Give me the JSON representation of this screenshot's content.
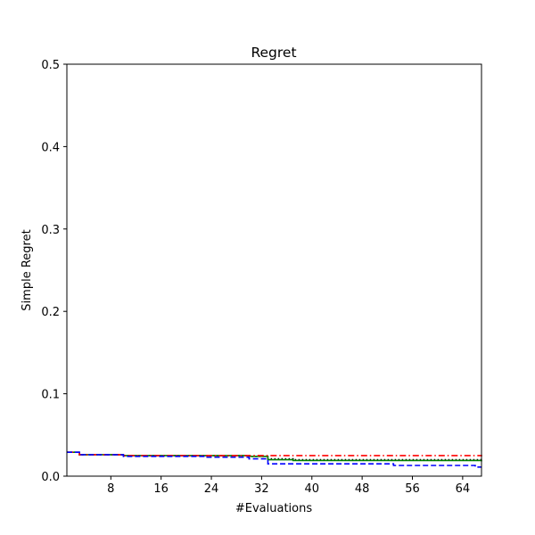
{
  "chart_data": {
    "type": "line",
    "title": "Regret",
    "xlabel": "#Evaluations",
    "ylabel": "Simple Regret",
    "xlim": [
      1,
      67
    ],
    "ylim": [
      0,
      0.5
    ],
    "xticks": [
      8,
      16,
      24,
      32,
      40,
      48,
      56,
      64
    ],
    "xtick_labels": [
      "8",
      "16",
      "24",
      "32",
      "40",
      "48",
      "56",
      "64"
    ],
    "yticks": [
      0.0,
      0.1,
      0.2,
      0.3,
      0.4,
      0.5
    ],
    "ytick_labels": [
      "0.0",
      "0.1",
      "0.2",
      "0.3",
      "0.4",
      "0.5"
    ],
    "grid": false,
    "series": [
      {
        "color": "#000000",
        "style": "dotted",
        "x": [
          1,
          2,
          3,
          10,
          30,
          33,
          37,
          67
        ],
        "y": [
          0.029,
          0.029,
          0.026,
          0.025,
          0.024,
          0.021,
          0.02,
          0.02
        ]
      },
      {
        "color": "#008000",
        "style": "solid",
        "x": [
          1,
          2,
          3,
          10,
          30,
          33,
          37,
          67
        ],
        "y": [
          0.029,
          0.029,
          0.026,
          0.025,
          0.024,
          0.02,
          0.019,
          0.018
        ]
      },
      {
        "color": "#ff0000",
        "style": "dashdot",
        "x": [
          1,
          2,
          3,
          10,
          31,
          67
        ],
        "y": [
          0.029,
          0.029,
          0.026,
          0.025,
          0.025,
          0.024
        ]
      },
      {
        "color": "#0000ff",
        "style": "dashed",
        "x": [
          1,
          2,
          3,
          9,
          10,
          23,
          30,
          33,
          53,
          66,
          67
        ],
        "y": [
          0.029,
          0.029,
          0.026,
          0.026,
          0.024,
          0.023,
          0.021,
          0.015,
          0.013,
          0.011,
          0.011
        ]
      }
    ]
  }
}
